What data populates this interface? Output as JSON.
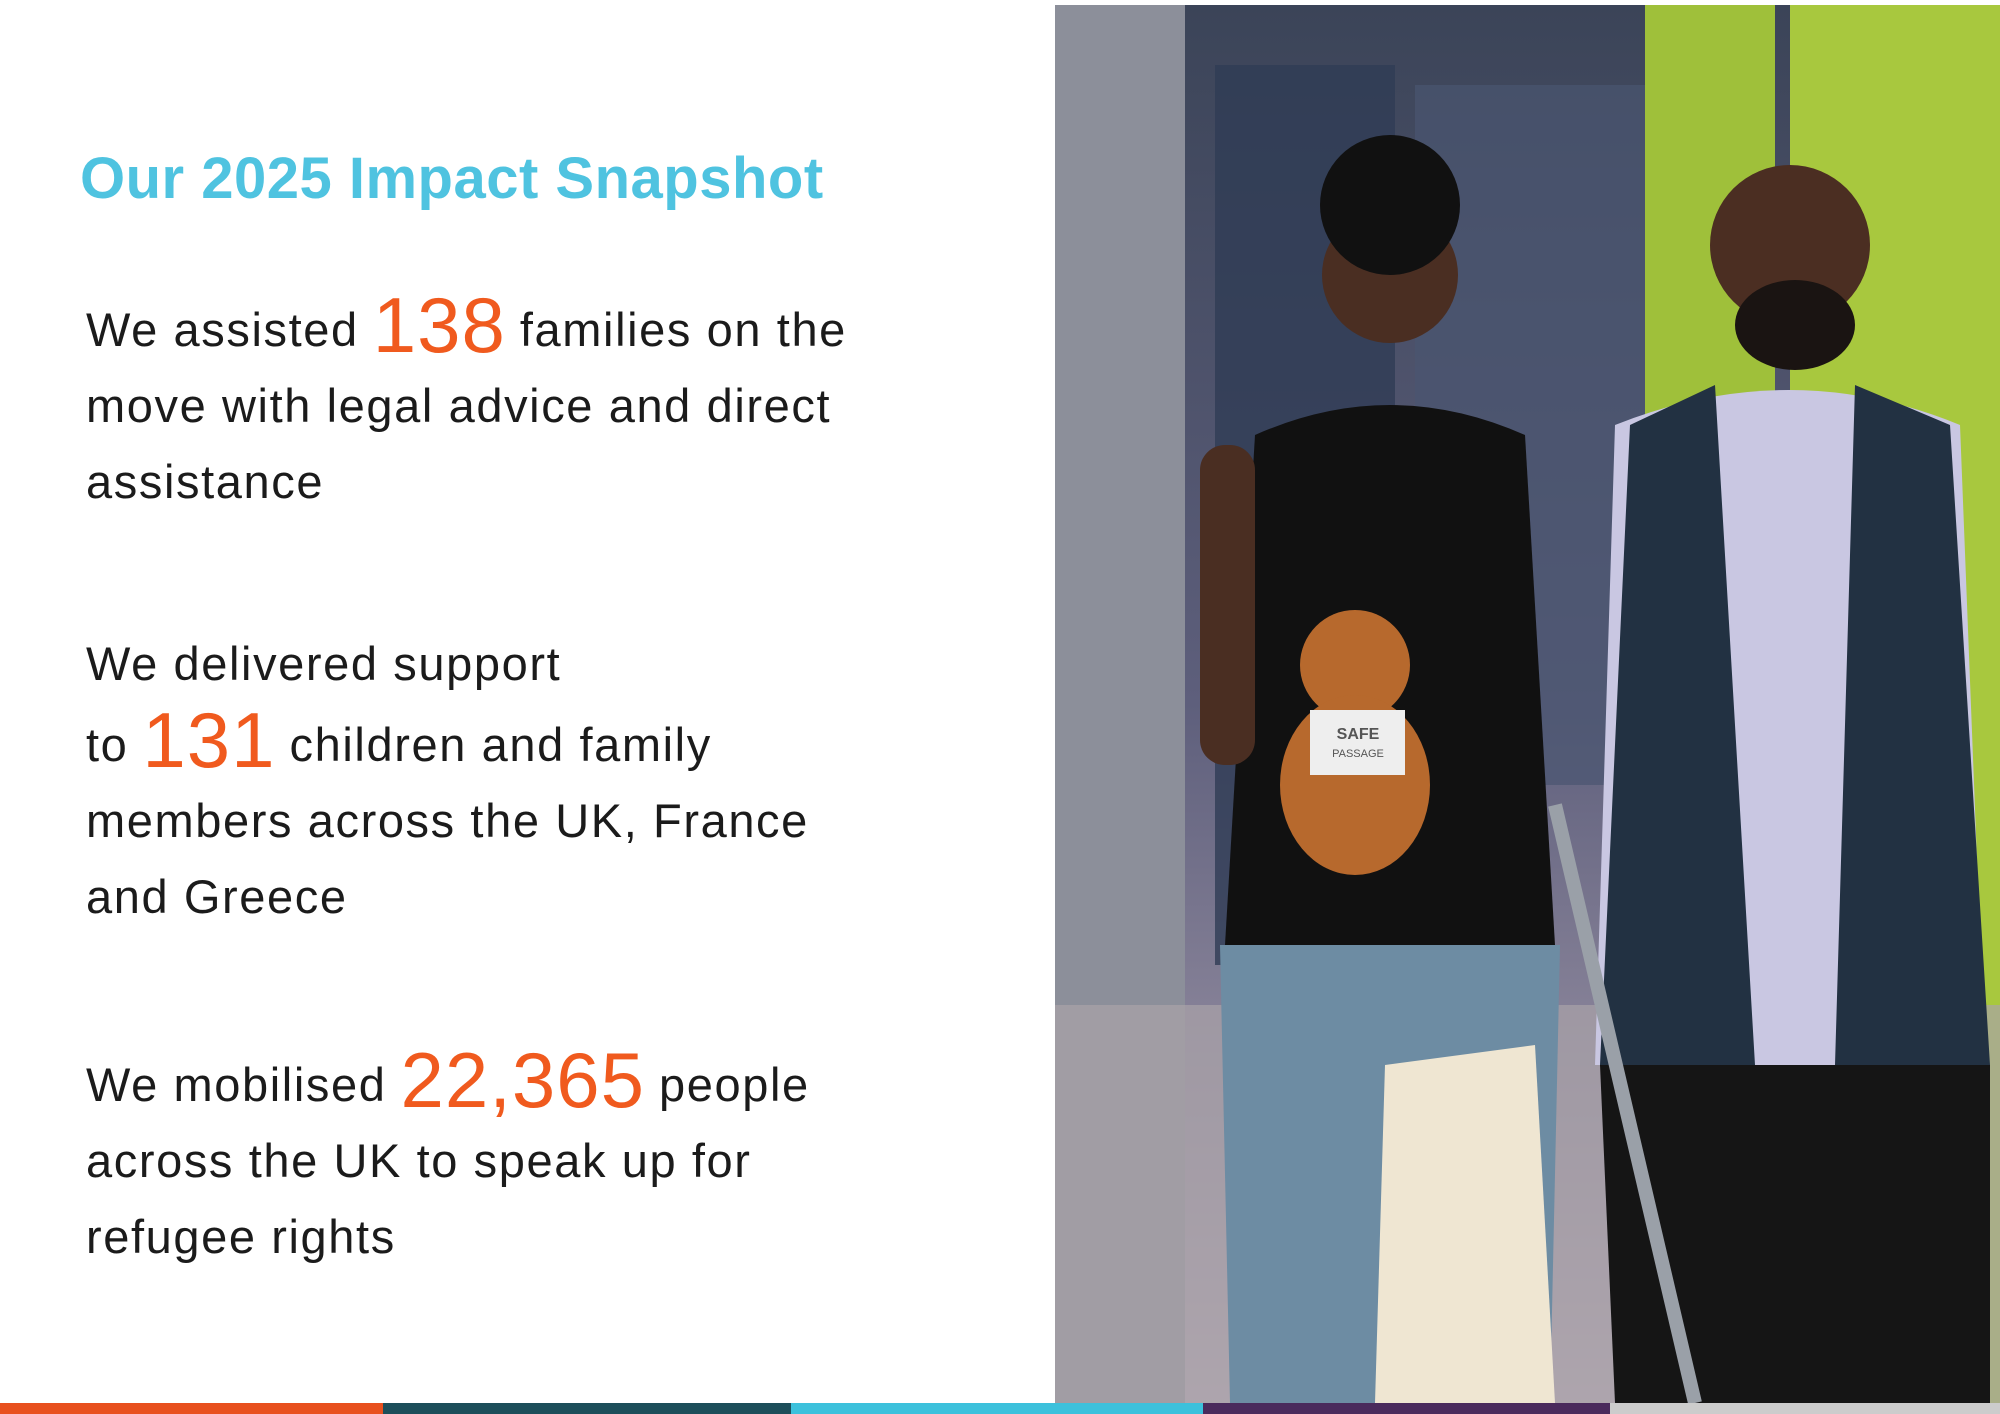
{
  "header": {
    "title": "Our 2025 Impact Snapshot"
  },
  "stats": [
    {
      "before": "We assisted",
      "number": "138",
      "after": "families on the move with legal advice and direct assistance"
    },
    {
      "before": "We delivered support to",
      "number": "131",
      "after": "children and family members across the UK, France and Greece"
    },
    {
      "before": "We mobilised",
      "number": "22,365",
      "after": "people across the UK to speak up for refugee rights"
    }
  ],
  "photo": {
    "shirt_text": [
      "SAFE",
      "PASSAGE"
    ]
  }
}
